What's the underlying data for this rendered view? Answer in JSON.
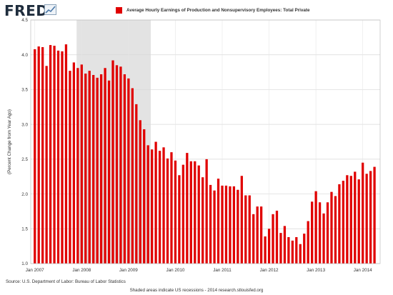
{
  "logo": {
    "text": "FRED",
    "icon": "fred-line-chart-icon"
  },
  "legend": {
    "label": "Average Hourly Earnings of Production and Nonsupervisory Employees: Total Private",
    "color": "#e00000"
  },
  "source_text": "Source: U.S. Department of Labor: Bureau of Labor Statistics",
  "footer_text": "Shaded areas indicate US recessions - 2014 research.stlouisfed.org",
  "chart_data": {
    "type": "bar",
    "ylabel": "(Percent Change from Year Ago)",
    "ylim": [
      1.0,
      4.5
    ],
    "yticks": [
      "1.0",
      "1.5",
      "2.0",
      "2.5",
      "3.0",
      "3.5",
      "4.0",
      "4.5"
    ],
    "xticks": [
      "Jan 2007",
      "Jan 2008",
      "Jan 2009",
      "Jan 2010",
      "Jan 2011",
      "Jan 2012",
      "Jan 2013",
      "Jan 2014"
    ],
    "recession": {
      "start": "2007-12",
      "end": "2009-06"
    },
    "bar_color": "#e00000",
    "recession_color": "#e3e3e3",
    "grid": true,
    "legend_position": "top",
    "series": [
      {
        "start": "2007-01",
        "values": [
          4.08,
          4.12,
          4.11,
          3.84,
          4.14,
          4.13,
          4.06,
          4.05,
          4.15,
          3.77,
          3.89,
          3.81,
          3.86,
          3.73,
          3.77,
          3.71,
          3.67,
          3.72,
          3.81,
          3.63,
          3.92,
          3.85,
          3.83,
          3.72,
          3.66,
          3.52,
          3.29,
          3.06,
          2.93,
          2.7,
          2.64,
          2.75,
          2.62,
          2.67,
          2.51,
          2.6,
          2.48,
          2.27,
          2.42,
          2.59,
          2.47,
          2.47,
          2.41,
          2.24,
          2.5,
          2.13,
          2.05,
          2.22,
          2.12,
          2.12,
          2.11,
          2.11,
          2.06,
          2.26,
          1.98,
          1.98,
          1.71,
          1.82,
          1.82,
          1.39,
          1.5,
          1.71,
          1.76,
          1.44,
          1.54,
          1.38,
          1.33,
          1.38,
          1.28,
          1.43,
          1.61,
          1.89,
          2.04,
          1.88,
          1.72,
          1.88,
          2.03,
          1.97,
          2.14,
          2.19,
          2.27,
          2.26,
          2.32,
          2.21,
          2.45,
          2.29,
          2.33,
          2.39
        ]
      }
    ]
  }
}
